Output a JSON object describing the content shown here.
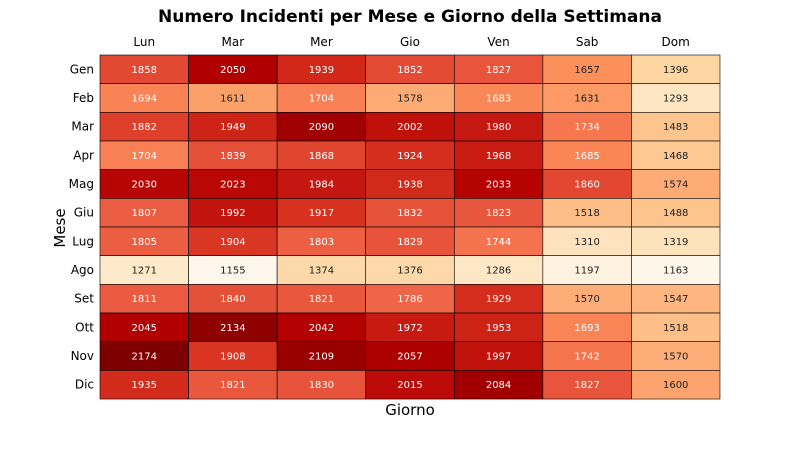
{
  "chart_data": {
    "type": "heatmap",
    "title": "Numero Incidenti per Mese e Giorno della Settimana",
    "xlabel": "Giorno",
    "ylabel": "Mese",
    "x_categories": [
      "Lun",
      "Mar",
      "Mer",
      "Gio",
      "Ven",
      "Sab",
      "Dom"
    ],
    "y_categories": [
      "Gen",
      "Feb",
      "Mar",
      "Apr",
      "Mag",
      "Giu",
      "Lug",
      "Ago",
      "Set",
      "Ott",
      "Nov",
      "Dic"
    ],
    "values": [
      [
        1858,
        2050,
        1939,
        1852,
        1827,
        1657,
        1396
      ],
      [
        1694,
        1611,
        1704,
        1578,
        1683,
        1631,
        1293
      ],
      [
        1882,
        1949,
        2090,
        2002,
        1980,
        1734,
        1483
      ],
      [
        1704,
        1839,
        1868,
        1924,
        1968,
        1685,
        1468
      ],
      [
        2030,
        2023,
        1984,
        1938,
        2033,
        1860,
        1574
      ],
      [
        1807,
        1992,
        1917,
        1832,
        1823,
        1518,
        1488
      ],
      [
        1805,
        1904,
        1803,
        1829,
        1744,
        1310,
        1319
      ],
      [
        1271,
        1155,
        1374,
        1376,
        1286,
        1197,
        1163
      ],
      [
        1811,
        1840,
        1821,
        1786,
        1929,
        1570,
        1547
      ],
      [
        2045,
        2134,
        2042,
        1972,
        1953,
        1693,
        1518
      ],
      [
        2174,
        1908,
        2109,
        2057,
        1997,
        1742,
        1570
      ],
      [
        1935,
        1821,
        1830,
        2015,
        2084,
        1827,
        1600
      ]
    ],
    "colormap": "OrRd",
    "value_range": [
      1155,
      2174
    ],
    "x_axis_position": "top",
    "grid": false,
    "legend": "none"
  }
}
